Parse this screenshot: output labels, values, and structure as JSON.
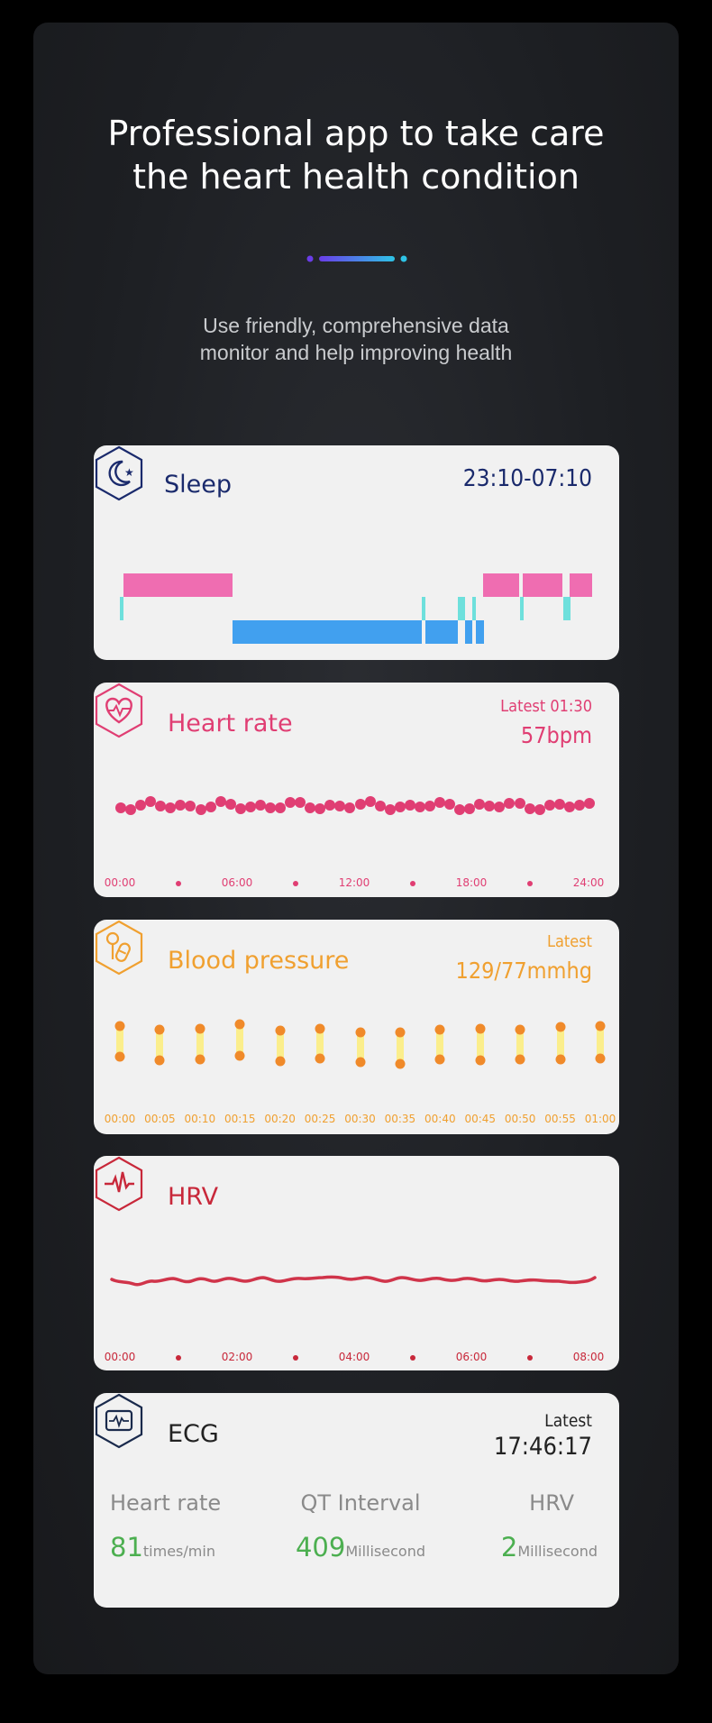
{
  "hero": {
    "title": "Professional app to take care\nthe heart health condition",
    "subtitle": "Use friendly, comprehensive data\nmonitor and help improving health"
  },
  "colors": {
    "sleep": "#1a2a6c",
    "heart": "#e03e73",
    "bp": "#f0a030",
    "hrv": "#c8283a",
    "ecg": "#222222",
    "ecg_value": "#4caf50"
  },
  "sleep": {
    "title": "Sleep",
    "range": "23:10-07:10",
    "icon": "moon-star-icon"
  },
  "heart_rate": {
    "title": "Heart rate",
    "latest_label": "Latest 01:30",
    "value": "57bpm",
    "icon": "heart-pulse-icon",
    "ticks": [
      "00:00",
      "06:00",
      "12:00",
      "18:00",
      "24:00"
    ]
  },
  "blood_pressure": {
    "title": "Blood pressure",
    "latest_label": "Latest",
    "value": "129/77mmhg",
    "icon": "pill-icon",
    "ticks": [
      "00:00",
      "00:05",
      "00:10",
      "00:15",
      "00:20",
      "00:25",
      "00:30",
      "00:35",
      "00:40",
      "00:45",
      "00:50",
      "00:55",
      "01:00"
    ]
  },
  "hrv": {
    "title": "HRV",
    "icon": "pulse-line-icon",
    "ticks": [
      "00:00",
      "02:00",
      "04:00",
      "06:00",
      "08:00"
    ]
  },
  "ecg": {
    "title": "ECG",
    "latest_label": "Latest",
    "time": "17:46:17",
    "icon": "ecg-monitor-icon",
    "metrics": [
      {
        "label": "Heart rate",
        "value": "81",
        "unit": "times/min"
      },
      {
        "label": "QT Interval",
        "value": "409",
        "unit": "Millisecond"
      },
      {
        "label": "HRV",
        "value": "2",
        "unit": "Millisecond"
      }
    ]
  }
}
